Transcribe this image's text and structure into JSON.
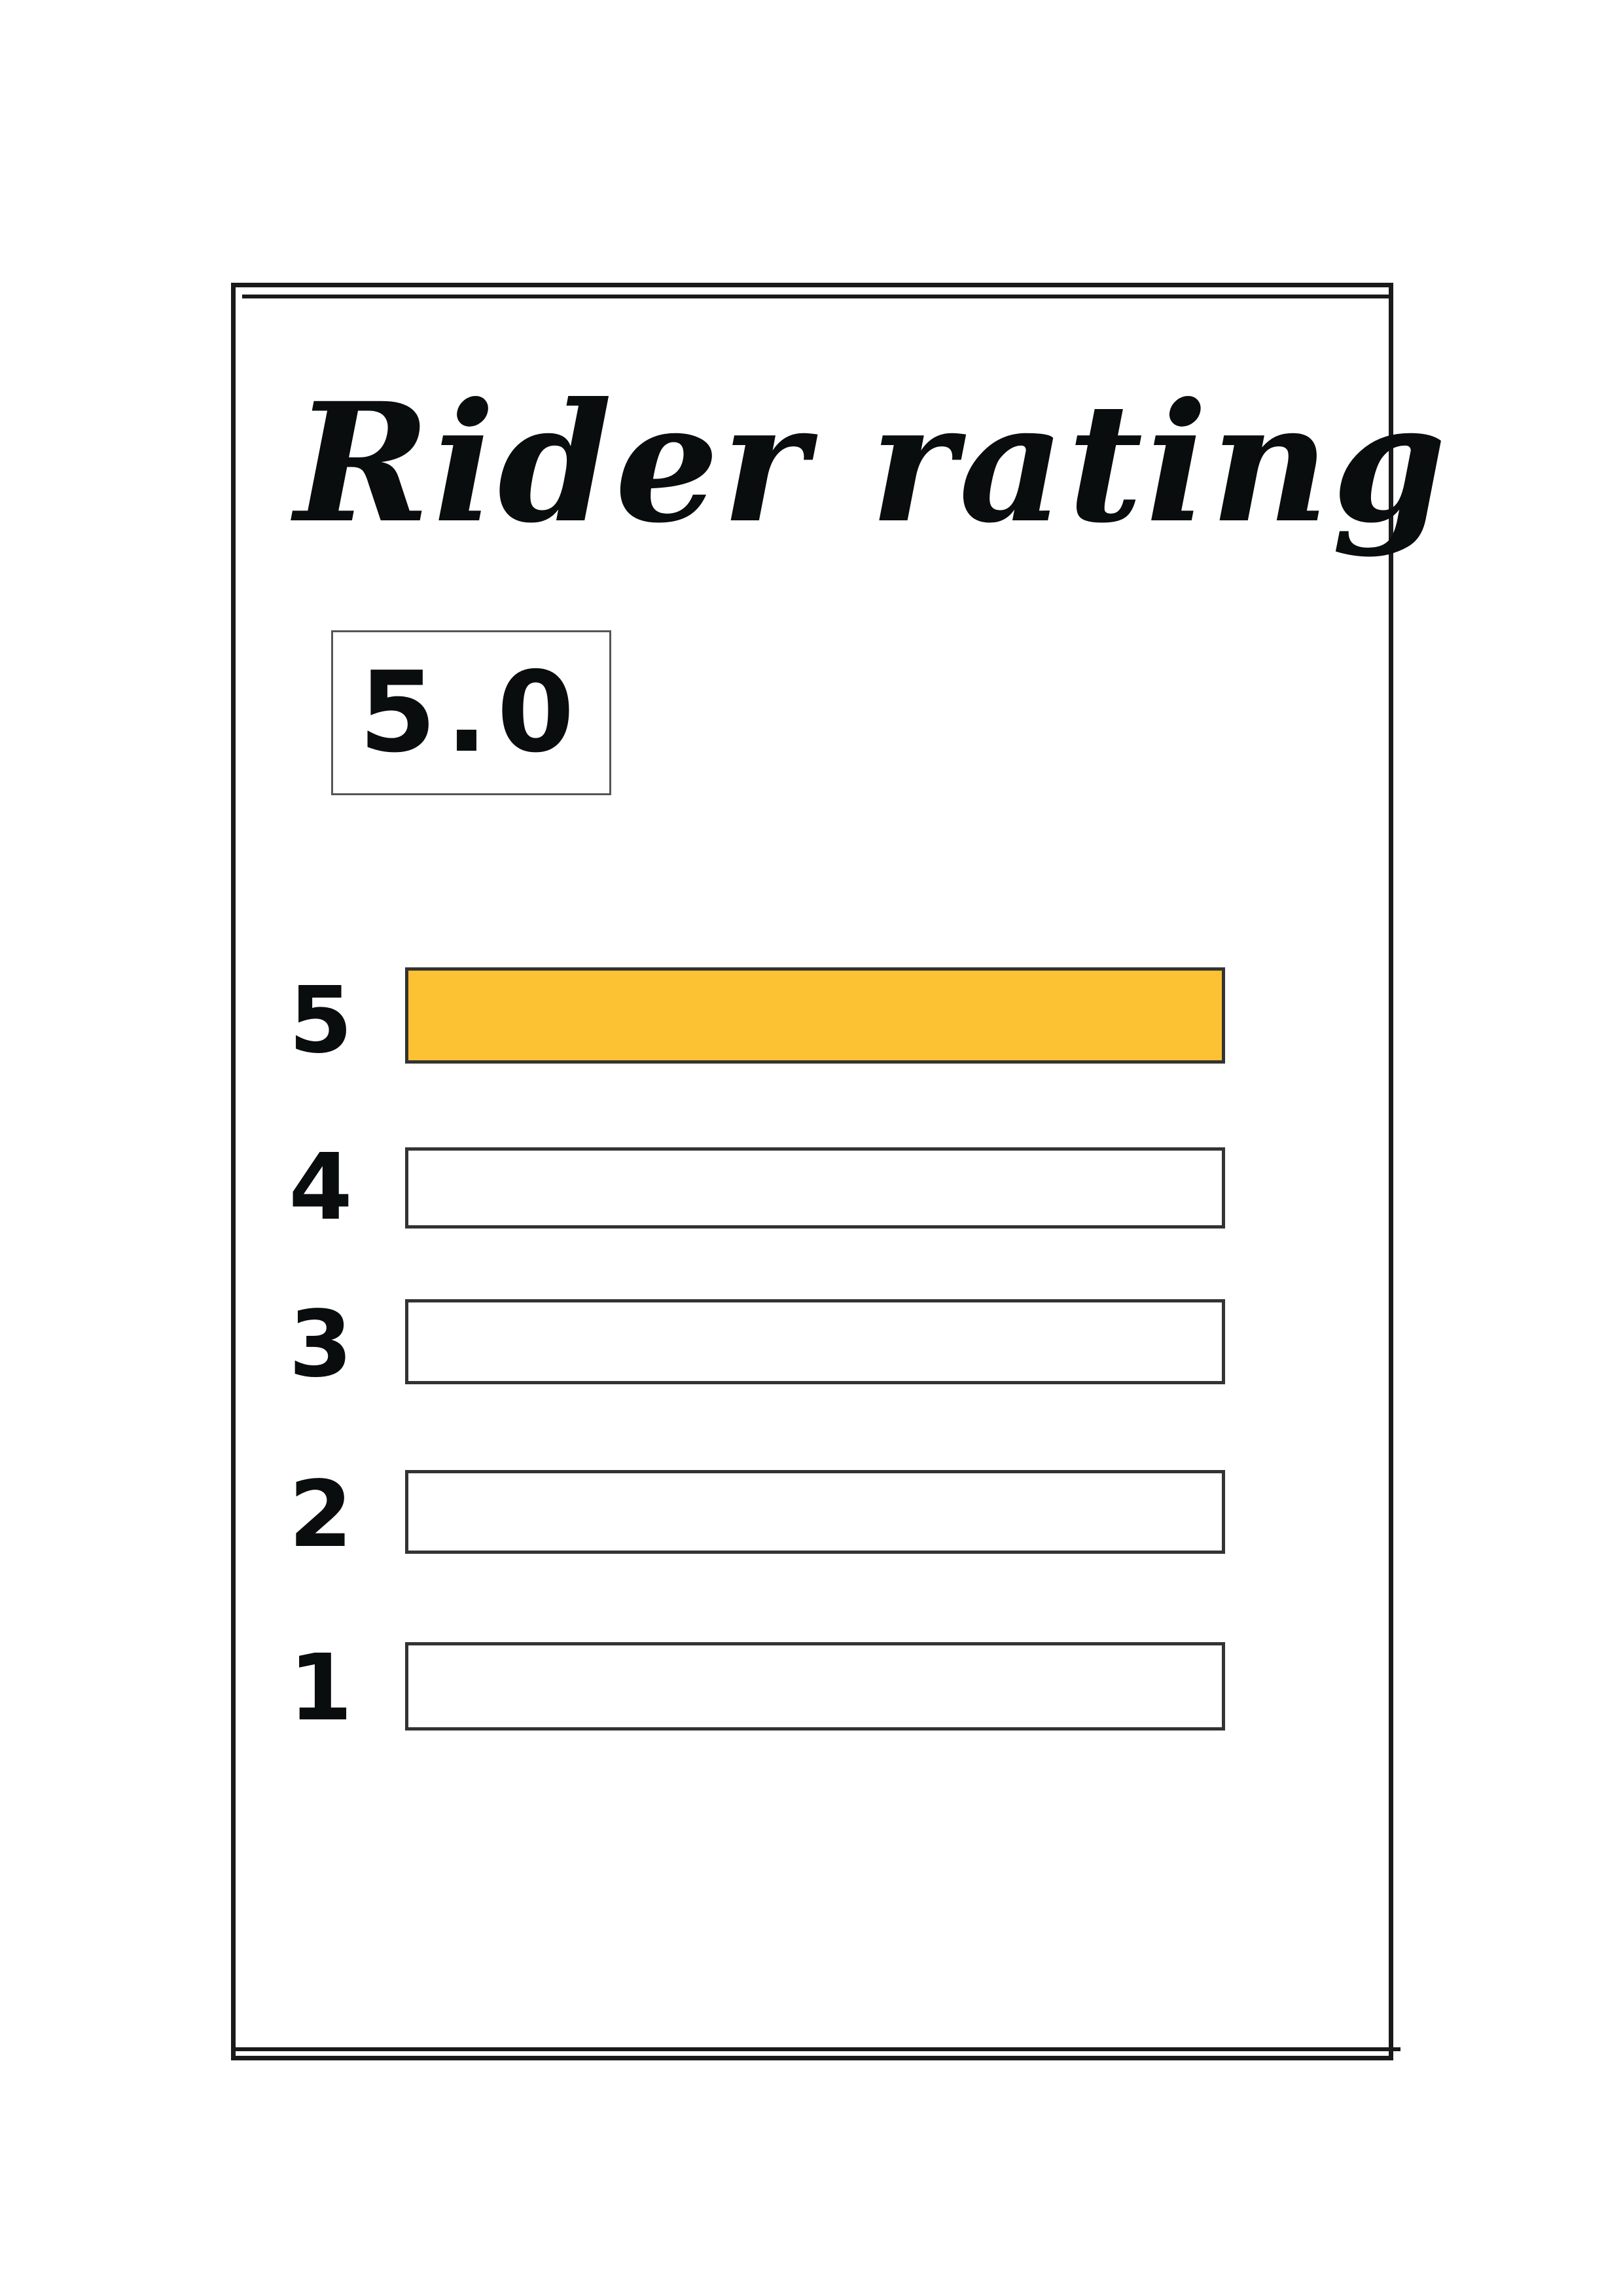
{
  "title": "Rider rating",
  "score": "5.0",
  "accent_color": "#FCC233",
  "rows": [
    {
      "label": "5",
      "fill_fraction": 1.0
    },
    {
      "label": "4",
      "fill_fraction": 0.0
    },
    {
      "label": "3",
      "fill_fraction": 0.0
    },
    {
      "label": "2",
      "fill_fraction": 0.0
    },
    {
      "label": "1",
      "fill_fraction": 0.0
    }
  ]
}
